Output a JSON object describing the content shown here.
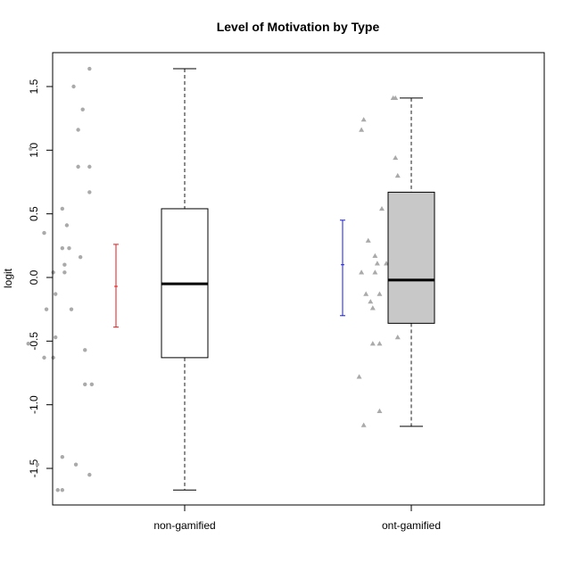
{
  "chart_data": {
    "type": "box",
    "title": "Level of Motivation by Type",
    "xlabel": "",
    "ylabel": "logit",
    "ylim": [
      -1.8,
      1.75
    ],
    "y_ticks": [
      -1.5,
      -1.0,
      -0.5,
      0.0,
      0.5,
      1.0,
      1.5
    ],
    "y_tick_labels": [
      "-1.5",
      "-1.0",
      "-0.5",
      "0.0",
      "0.5",
      "1.0",
      "1.5"
    ],
    "categories": [
      "non-gamified",
      "ont-gamified"
    ],
    "grid": false,
    "series": [
      {
        "category": "non-gamified",
        "box": {
          "min": -1.67,
          "q1": -0.63,
          "median": -0.05,
          "q3": 0.54,
          "max": 1.64
        },
        "box_fill": "#ffffff",
        "mean_ci": {
          "low": -0.39,
          "mean": -0.07,
          "high": 0.26,
          "color": "#e31a1c"
        },
        "point_shape": "circle",
        "point_color": "#aaaaaa",
        "points": [
          {
            "x": 0.58,
            "y": 1.64
          },
          {
            "x": 0.51,
            "y": 1.5
          },
          {
            "x": 0.55,
            "y": 1.32
          },
          {
            "x": 0.53,
            "y": 1.16
          },
          {
            "x": 0.32,
            "y": 1.01
          },
          {
            "x": 0.53,
            "y": 0.87
          },
          {
            "x": 0.58,
            "y": 0.87
          },
          {
            "x": 0.58,
            "y": 0.67
          },
          {
            "x": 0.46,
            "y": 0.54
          },
          {
            "x": 0.48,
            "y": 0.41
          },
          {
            "x": 0.38,
            "y": 0.35
          },
          {
            "x": 0.46,
            "y": 0.23
          },
          {
            "x": 0.49,
            "y": 0.23
          },
          {
            "x": 0.54,
            "y": 0.16
          },
          {
            "x": 0.47,
            "y": 0.1
          },
          {
            "x": 0.42,
            "y": 0.04
          },
          {
            "x": 0.47,
            "y": 0.04
          },
          {
            "x": 0.43,
            "y": -0.13
          },
          {
            "x": 0.39,
            "y": -0.25
          },
          {
            "x": 0.5,
            "y": -0.25
          },
          {
            "x": 0.43,
            "y": -0.47
          },
          {
            "x": 0.31,
            "y": -0.52
          },
          {
            "x": 0.56,
            "y": -0.57
          },
          {
            "x": 0.38,
            "y": -0.63
          },
          {
            "x": 0.42,
            "y": -0.63
          },
          {
            "x": 0.56,
            "y": -0.84
          },
          {
            "x": 0.59,
            "y": -0.84
          },
          {
            "x": 0.46,
            "y": -1.41
          },
          {
            "x": 0.35,
            "y": -1.47
          },
          {
            "x": 0.52,
            "y": -1.47
          },
          {
            "x": 0.58,
            "y": -1.55
          },
          {
            "x": 0.44,
            "y": -1.67
          },
          {
            "x": 0.46,
            "y": -1.67
          }
        ]
      },
      {
        "category": "ont-gamified",
        "box": {
          "min": -1.17,
          "q1": -0.36,
          "median": -0.02,
          "q3": 0.67,
          "max": 1.41
        },
        "box_fill": "#c8c8c8",
        "mean_ci": {
          "low": -0.3,
          "mean": 0.1,
          "high": 0.45,
          "color": "#1a1ad6"
        },
        "point_shape": "triangle",
        "point_color": "#aaaaaa",
        "points": [
          {
            "x": 1.92,
            "y": 1.41
          },
          {
            "x": 1.93,
            "y": 1.41
          },
          {
            "x": 1.79,
            "y": 1.24
          },
          {
            "x": 1.78,
            "y": 1.16
          },
          {
            "x": 1.93,
            "y": 0.94
          },
          {
            "x": 1.94,
            "y": 0.8
          },
          {
            "x": 1.87,
            "y": 0.54
          },
          {
            "x": 1.81,
            "y": 0.29
          },
          {
            "x": 1.84,
            "y": 0.17
          },
          {
            "x": 1.85,
            "y": 0.11
          },
          {
            "x": 1.89,
            "y": 0.11
          },
          {
            "x": 1.78,
            "y": 0.04
          },
          {
            "x": 1.84,
            "y": 0.04
          },
          {
            "x": 1.94,
            "y": -0.07
          },
          {
            "x": 1.8,
            "y": -0.13
          },
          {
            "x": 1.86,
            "y": -0.13
          },
          {
            "x": 1.82,
            "y": -0.19
          },
          {
            "x": 1.83,
            "y": -0.24
          },
          {
            "x": 1.94,
            "y": -0.47
          },
          {
            "x": 1.83,
            "y": -0.52
          },
          {
            "x": 1.86,
            "y": -0.52
          },
          {
            "x": 1.77,
            "y": -0.78
          },
          {
            "x": 1.86,
            "y": -1.05
          },
          {
            "x": 1.79,
            "y": -1.16
          }
        ]
      }
    ]
  }
}
